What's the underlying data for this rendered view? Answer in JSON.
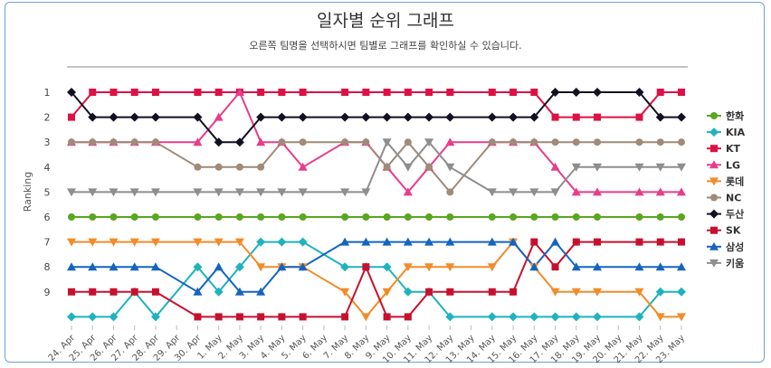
{
  "chart_data": {
    "type": "line",
    "title": "일자별 순위 그래프",
    "subtitle": "오른쪽 팀명을 선택하시면 팀별로 그래프를 확인하실 수 있습니다.",
    "ylabel": "Ranking",
    "xlabel": "",
    "ylim": [
      1,
      10
    ],
    "y_reversed": true,
    "yticks": [
      "1",
      "2",
      "3",
      "4",
      "5",
      "6",
      "7",
      "8",
      "9"
    ],
    "legend_position": "right",
    "categories": [
      "24. Apr",
      "25. Apr",
      "26. Apr",
      "27. Apr",
      "28. Apr",
      "29. Apr",
      "30. Apr",
      "1. May",
      "2. May",
      "3. May",
      "4. May",
      "5. May",
      "6. May",
      "7. May",
      "8. May",
      "9. May",
      "10. May",
      "11. May",
      "12. May",
      "13. May",
      "14. May",
      "15. May",
      "16. May",
      "17. May",
      "18. May",
      "19. May",
      "20. May",
      "21. May",
      "22. May",
      "23. May"
    ],
    "series": [
      {
        "name": "한화",
        "color": "#5aa71f",
        "marker": "circle",
        "values": [
          6,
          6,
          6,
          6,
          6,
          null,
          6,
          6,
          6,
          6,
          6,
          6,
          null,
          6,
          6,
          6,
          6,
          6,
          6,
          null,
          6,
          6,
          6,
          6,
          6,
          6,
          null,
          6,
          6,
          6
        ]
      },
      {
        "name": "KIA",
        "color": "#1fb3bd",
        "marker": "diamond",
        "values": [
          10,
          10,
          10,
          9,
          10,
          null,
          8,
          9,
          8,
          7,
          7,
          7,
          null,
          8,
          8,
          8,
          9,
          9,
          10,
          null,
          10,
          10,
          10,
          10,
          10,
          10,
          null,
          10,
          9,
          9
        ]
      },
      {
        "name": "KT",
        "color": "#dd1144",
        "marker": "square",
        "values": [
          2,
          1,
          1,
          1,
          1,
          null,
          1,
          1,
          1,
          1,
          1,
          1,
          null,
          1,
          1,
          1,
          1,
          1,
          1,
          null,
          1,
          1,
          1,
          2,
          2,
          2,
          null,
          2,
          1,
          1
        ]
      },
      {
        "name": "LG",
        "color": "#e83d8a",
        "marker": "triangle",
        "values": [
          3,
          3,
          3,
          3,
          3,
          null,
          3,
          2,
          1,
          3,
          3,
          4,
          null,
          3,
          3,
          4,
          5,
          4,
          3,
          null,
          3,
          3,
          3,
          4,
          5,
          5,
          null,
          5,
          5,
          5
        ]
      },
      {
        "name": "롯데",
        "color": "#f28c28",
        "marker": "triangle-down",
        "values": [
          7,
          7,
          7,
          7,
          7,
          null,
          7,
          7,
          7,
          8,
          8,
          8,
          null,
          9,
          10,
          9,
          8,
          8,
          8,
          null,
          8,
          7,
          8,
          9,
          9,
          9,
          null,
          9,
          10,
          10
        ]
      },
      {
        "name": "NC",
        "color": "#a08a78",
        "marker": "circle",
        "values": [
          3,
          3,
          3,
          3,
          3,
          null,
          4,
          4,
          4,
          4,
          3,
          3,
          null,
          3,
          3,
          4,
          3,
          4,
          5,
          null,
          3,
          3,
          3,
          3,
          3,
          3,
          null,
          3,
          3,
          3
        ]
      },
      {
        "name": "두산",
        "color": "#111122",
        "marker": "diamond",
        "values": [
          1,
          2,
          2,
          2,
          2,
          null,
          2,
          3,
          3,
          2,
          2,
          2,
          null,
          2,
          2,
          2,
          2,
          2,
          2,
          null,
          2,
          2,
          2,
          1,
          1,
          1,
          null,
          1,
          2,
          2
        ]
      },
      {
        "name": "SK",
        "color": "#c8102e",
        "marker": "square",
        "values": [
          9,
          9,
          9,
          9,
          9,
          null,
          10,
          10,
          10,
          10,
          10,
          10,
          null,
          10,
          8,
          10,
          10,
          9,
          9,
          null,
          9,
          9,
          7,
          8,
          7,
          7,
          null,
          7,
          7,
          7
        ]
      },
      {
        "name": "삼성",
        "color": "#1565c0",
        "marker": "triangle",
        "values": [
          8,
          8,
          8,
          8,
          8,
          null,
          9,
          8,
          9,
          9,
          8,
          8,
          null,
          7,
          7,
          7,
          7,
          7,
          7,
          null,
          7,
          7,
          8,
          7,
          8,
          8,
          null,
          8,
          8,
          8
        ]
      },
      {
        "name": "키움",
        "color": "#8e8e8e",
        "marker": "triangle-down",
        "values": [
          5,
          5,
          5,
          5,
          5,
          null,
          5,
          5,
          5,
          5,
          5,
          5,
          null,
          5,
          5,
          3,
          4,
          3,
          4,
          null,
          5,
          5,
          5,
          5,
          4,
          4,
          null,
          4,
          4,
          4
        ]
      }
    ]
  }
}
